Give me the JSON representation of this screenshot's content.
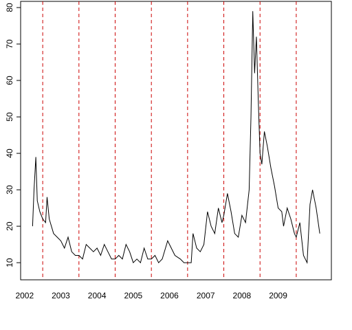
{
  "chart_data": {
    "type": "line",
    "x": [
      2002.72,
      2002.76,
      2002.81,
      2002.85,
      2002.92,
      2003.0,
      2003.08,
      2003.12,
      2003.18,
      2003.3,
      2003.4,
      2003.5,
      2003.6,
      2003.7,
      2003.8,
      2003.9,
      2004.0,
      2004.1,
      2004.2,
      2004.3,
      2004.4,
      2004.5,
      2004.6,
      2004.7,
      2004.8,
      2004.9,
      2005.0,
      2005.1,
      2005.2,
      2005.3,
      2005.4,
      2005.5,
      2005.6,
      2005.7,
      2005.8,
      2005.9,
      2006.0,
      2006.1,
      2006.2,
      2006.3,
      2006.45,
      2006.55,
      2006.65,
      2006.8,
      2006.9,
      2007.0,
      2007.1,
      2007.15,
      2007.25,
      2007.35,
      2007.45,
      2007.55,
      2007.65,
      2007.75,
      2007.85,
      2007.95,
      2008.0,
      2008.1,
      2008.2,
      2008.3,
      2008.4,
      2008.5,
      2008.6,
      2008.7,
      2008.75,
      2008.8,
      2008.85,
      2008.9,
      2008.95,
      2009.0,
      2009.05,
      2009.12,
      2009.2,
      2009.3,
      2009.4,
      2009.5,
      2009.6,
      2009.65,
      2009.75,
      2009.85,
      2009.95,
      2010.0,
      2010.1,
      2010.2,
      2010.3,
      2010.38,
      2010.45,
      2010.55,
      2010.65
    ],
    "values": [
      20,
      30,
      39,
      27,
      24,
      22,
      21,
      28,
      22,
      18,
      17,
      16,
      14,
      17,
      13,
      12,
      12,
      11,
      15,
      14,
      13,
      14,
      12,
      15,
      13,
      11,
      11,
      12,
      11,
      15,
      13,
      10,
      11,
      10,
      14,
      11,
      11,
      12,
      10,
      11,
      16,
      14,
      12,
      11,
      10,
      10,
      10,
      18,
      14,
      13,
      15,
      24,
      20,
      18,
      25,
      21,
      23,
      29,
      24,
      18,
      17,
      23,
      21,
      30,
      50,
      79,
      62,
      72,
      55,
      40,
      37,
      46,
      42,
      36,
      31,
      25,
      24,
      20,
      25,
      22,
      18,
      17,
      21,
      12,
      10,
      26,
      30,
      25,
      18
    ],
    "color": "#000000",
    "xlim": [
      2002.39,
      2010.97
    ],
    "ylim": [
      5.3,
      81.7
    ],
    "xticks": [
      {
        "value": 2002.5,
        "label": "2002"
      },
      {
        "value": 2003.5,
        "label": "2003"
      },
      {
        "value": 2004.5,
        "label": "2004"
      },
      {
        "value": 2005.5,
        "label": "2005"
      },
      {
        "value": 2006.5,
        "label": "2006"
      },
      {
        "value": 2007.5,
        "label": "2007"
      },
      {
        "value": 2008.5,
        "label": "2008"
      },
      {
        "value": 2009.5,
        "label": "2009"
      }
    ],
    "yticks": [
      10,
      20,
      30,
      40,
      50,
      60,
      70,
      80
    ],
    "vlines": [
      2003,
      2004,
      2005,
      2006,
      2007,
      2008,
      2009,
      2010
    ],
    "vline_color": "#cc0000"
  }
}
